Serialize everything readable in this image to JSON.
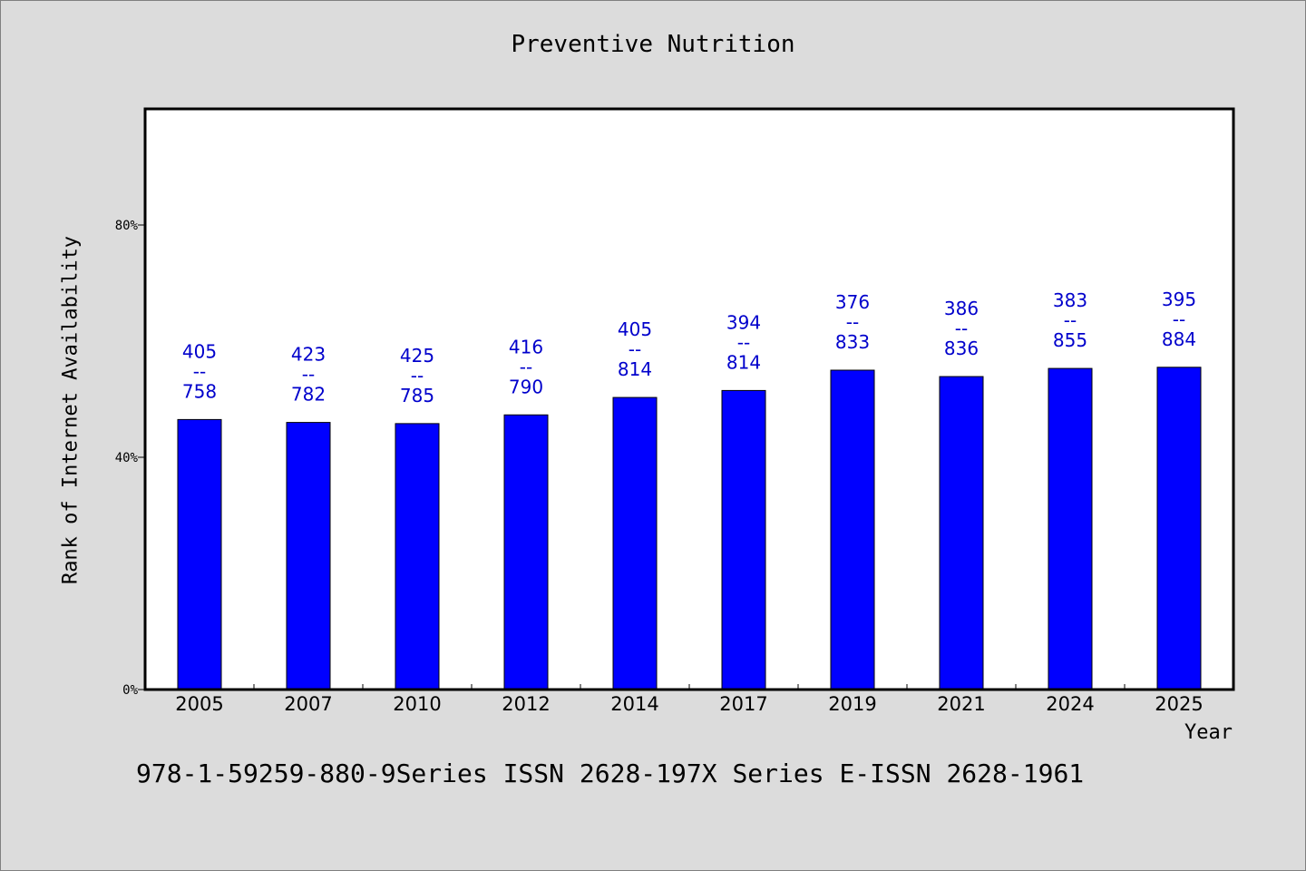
{
  "chart_data": {
    "type": "bar",
    "title": "Preventive Nutrition",
    "xlabel": "Year",
    "ylabel": "Rank of Internet Availability",
    "categories": [
      "2005",
      "2007",
      "2010",
      "2012",
      "2014",
      "2017",
      "2019",
      "2021",
      "2024",
      "2025"
    ],
    "values": [
      46.5,
      46.0,
      45.8,
      47.3,
      50.3,
      51.5,
      55.0,
      53.9,
      55.3,
      55.5
    ],
    "value_unit": "%",
    "ylim": [
      0,
      100
    ],
    "yticks": [
      {
        "value": 0,
        "label": "0%"
      },
      {
        "value": 40,
        "label": "40%"
      },
      {
        "value": 80,
        "label": "80%"
      }
    ],
    "data_labels": [
      {
        "top": "405",
        "sep": "--",
        "bottom": "758"
      },
      {
        "top": "423",
        "sep": "--",
        "bottom": "782"
      },
      {
        "top": "425",
        "sep": "--",
        "bottom": "785"
      },
      {
        "top": "416",
        "sep": "--",
        "bottom": "790"
      },
      {
        "top": "405",
        "sep": "--",
        "bottom": "814"
      },
      {
        "top": "394",
        "sep": "--",
        "bottom": "814"
      },
      {
        "top": "376",
        "sep": "--",
        "bottom": "833"
      },
      {
        "top": "386",
        "sep": "--",
        "bottom": "836"
      },
      {
        "top": "383",
        "sep": "--",
        "bottom": "855"
      },
      {
        "top": "395",
        "sep": "--",
        "bottom": "884"
      }
    ],
    "grid": false,
    "legend": "none",
    "colors": {
      "bar": "#0000ff",
      "data_label": "#0000cc",
      "plot_bg": "#ffffff",
      "page_bg": "#dcdcdc"
    }
  },
  "footnote": "978-1-59259-880-9Series ISSN 2628-197X Series E-ISSN 2628-1961"
}
